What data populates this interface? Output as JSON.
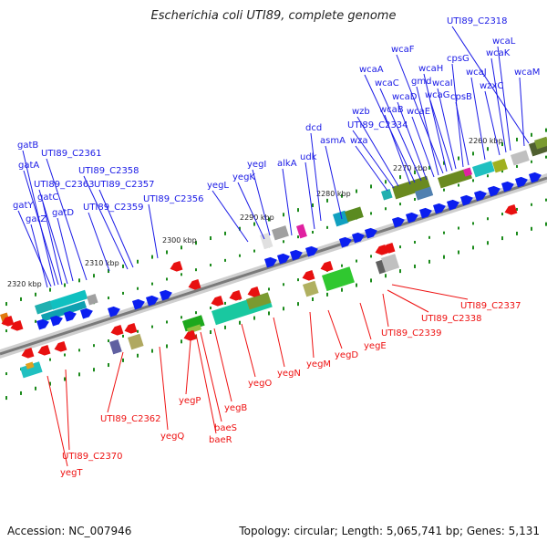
{
  "header": {
    "title": "Escherichia coli UTI89, complete genome"
  },
  "footer": {
    "accession": "Accession: NC_007946",
    "stats": "Topology: circular; Length: 5,065,741 bp; Genes: 5,131"
  },
  "scale_labels": [
    "2320 kbp",
    "2310 kbp",
    "2300 kbp",
    "2290 kbp",
    "2280 kbp",
    "2270 kbp",
    "2260 kbp"
  ],
  "genes_top": [
    "gatB",
    "gatA",
    "UTI89_C2361",
    "UTI89_C2363",
    "gatC",
    "gatY",
    "gatZ",
    "gatD",
    "UTI89_C2358",
    "UTI89_C2357",
    "UTI89_C2359",
    "UTI89_C2356",
    "yegL",
    "yegK",
    "yegI",
    "alkA",
    "udk",
    "dcd",
    "asmA",
    "wza",
    "UTI89_C2334",
    "wzb",
    "wcaB",
    "wcaA",
    "wcaC",
    "wcaD",
    "wcaE",
    "gmd",
    "wcaF",
    "wcaH",
    "wcaG",
    "wcaI",
    "cpsG",
    "cpsB",
    "wcaJ",
    "wzxC",
    "wcaK",
    "wcaL",
    "wcaM",
    "UTI89_C2318"
  ],
  "genes_bottom": [
    "UTI89_C2337",
    "UTI89_C2338",
    "UTI89_C2339",
    "yegE",
    "yegD",
    "yegM",
    "yegN",
    "yegO",
    "yegB",
    "yegP",
    "baeS",
    "baeR",
    "yegQ",
    "UTI89_C2362",
    "UTI89_C2370",
    "yegT"
  ],
  "colors": {
    "forward": "#0b1ff0",
    "reverse": "#e81010",
    "label_top": "#1a1ae6",
    "label_bottom": "#e11",
    "backbone": "#7a7a7a",
    "tick": "#1b8a1b"
  }
}
